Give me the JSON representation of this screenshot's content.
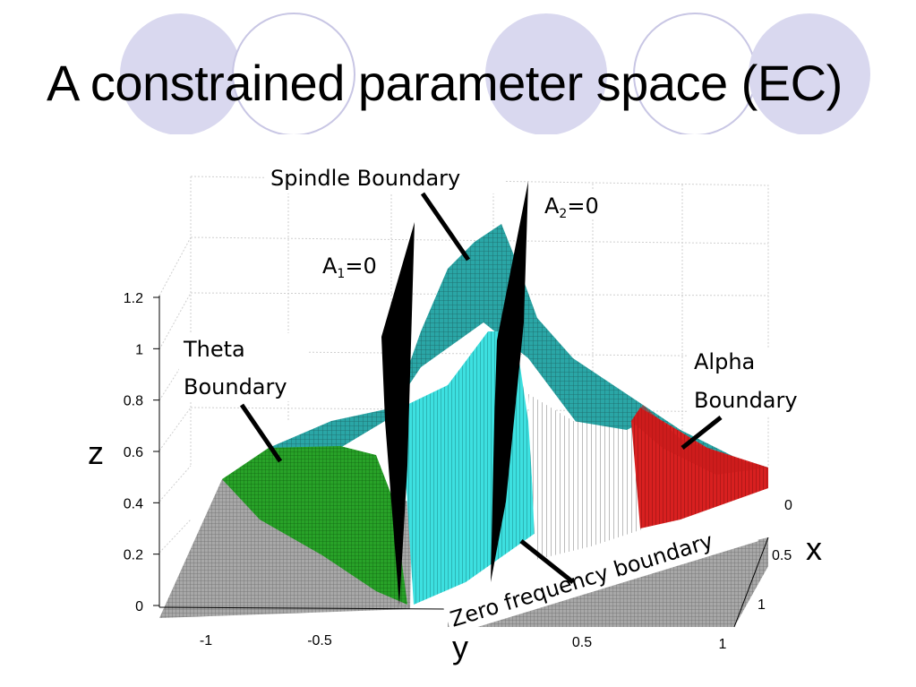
{
  "title": "A constrained parameter space (EC)",
  "chart_data": {
    "type": "surface3d",
    "title": "",
    "axes": {
      "x": {
        "label": "x",
        "ticks": [
          "0",
          "0.5",
          "1"
        ]
      },
      "y": {
        "label": "y",
        "ticks": [
          "-1",
          "-0.5",
          "0.5",
          "1"
        ]
      },
      "z": {
        "label": "z",
        "ticks": [
          "0",
          "0.2",
          "0.4",
          "0.6",
          "0.8",
          "1",
          "1.2"
        ],
        "range": [
          0,
          1.2
        ]
      }
    },
    "grid": true,
    "regions": [
      {
        "name": "theta",
        "color": "#22a022"
      },
      {
        "name": "spindle",
        "color": "#33dddd"
      },
      {
        "name": "alpha",
        "color": "#d42020"
      },
      {
        "name": "other",
        "color": "#ffffff"
      },
      {
        "name": "unstable-base",
        "color": "#9a9a9a"
      }
    ],
    "annotations": {
      "spindle": "Spindle Boundary",
      "a1_base": "A",
      "a1_sub": "1",
      "a1_tail": "=0",
      "a2_base": "A",
      "a2_sub": "2",
      "a2_tail": "=0",
      "theta_line1": "Theta",
      "theta_line2": "Boundary",
      "alpha_line1": "Alpha",
      "alpha_line2": "Boundary",
      "zero_freq": "Zero frequency boundary"
    }
  },
  "decor": {
    "circle_fill": "#d9d8ef",
    "circle_stroke": "#c8c6e4"
  }
}
